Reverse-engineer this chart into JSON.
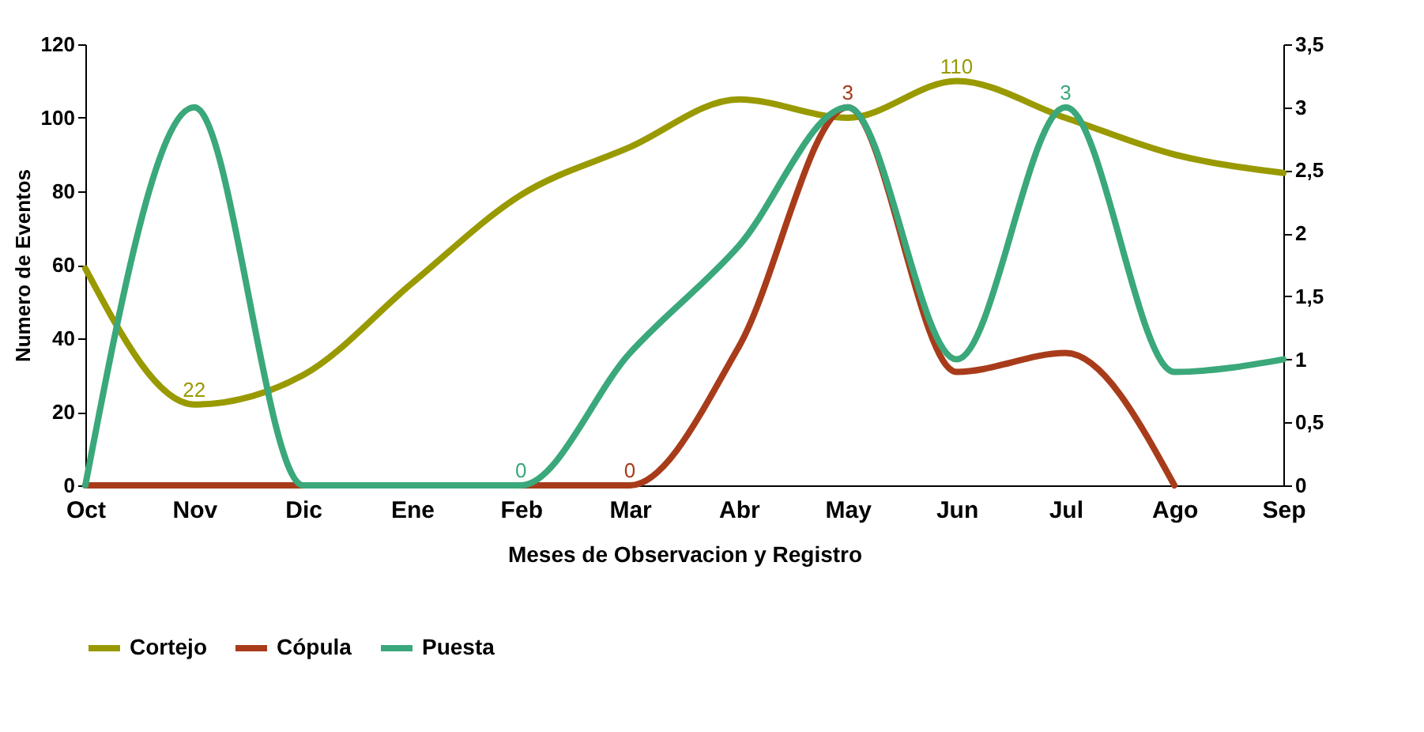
{
  "chart_data": {
    "type": "line",
    "xlabel": "Meses de Observacion y Registro",
    "ylabel": "Numero de Eventos",
    "categories": [
      "Oct",
      "Nov",
      "Dic",
      "Ene",
      "Feb",
      "Mar",
      "Abr",
      "May",
      "Jun",
      "Jul",
      "Ago",
      "Sep"
    ],
    "series": [
      {
        "name": "Cortejo",
        "color": "#999900",
        "values": [
          59,
          22,
          30,
          55,
          79,
          92,
          105,
          100,
          110,
          100,
          90,
          85
        ],
        "value_labels": [
          null,
          "22",
          null,
          null,
          null,
          null,
          null,
          null,
          "110",
          null,
          null,
          null
        ]
      },
      {
        "name": "Cópula",
        "color": "#a83c1a",
        "axis": "y2",
        "values": [
          0,
          0,
          0,
          0,
          0,
          0,
          1.1,
          3,
          0.9,
          1.05,
          0,
          null
        ],
        "value_labels": [
          null,
          null,
          null,
          null,
          null,
          "0",
          null,
          "3",
          null,
          null,
          null,
          null
        ]
      },
      {
        "name": "Puesta",
        "color": "#3aa87a",
        "axis": "y2",
        "values": [
          0,
          3,
          0,
          0,
          0,
          1.05,
          1.9,
          3,
          1,
          3,
          0.9,
          1
        ],
        "value_labels": [
          null,
          null,
          null,
          null,
          "0",
          null,
          null,
          null,
          null,
          "3",
          null,
          null
        ]
      }
    ],
    "ylim": [
      0,
      120
    ],
    "yticks": [
      0,
      20,
      40,
      60,
      80,
      100,
      120
    ],
    "y2lim": [
      0,
      3.5
    ],
    "y2ticks": [
      0,
      {
        "value": 0.5,
        "label": "0,5"
      },
      1,
      {
        "value": 1.5,
        "label": "1,5"
      },
      2,
      {
        "value": 2.5,
        "label": "2,5"
      },
      3,
      {
        "value": 3.5,
        "label": "3,5"
      }
    ],
    "legend": "bottom"
  }
}
